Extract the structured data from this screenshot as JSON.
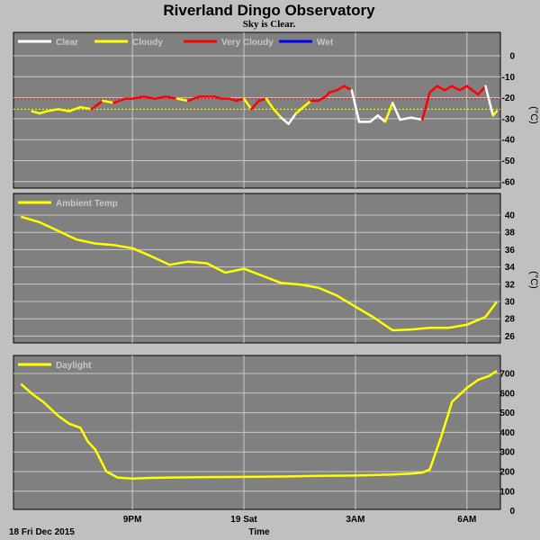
{
  "header": {
    "title": "Riverland Dingo Observatory",
    "subtitle": "Sky is Clear."
  },
  "footer": {
    "date_label": "18 Fri Dec 2015",
    "xlabel": "Time"
  },
  "colors": {
    "background": "#c0c0c0",
    "panel": "#808080",
    "grid": "#c8c8c8",
    "clear": "#ffffff",
    "cloudy": "#ffff00",
    "very_cloudy": "#ff0000",
    "wet": "#0000ff"
  },
  "chart_data": [
    {
      "type": "line",
      "ylabel": "(°C)",
      "ylim": [
        -60,
        0
      ],
      "yticks": [
        "0",
        "-10",
        "-20",
        "-30",
        "-40",
        "-50",
        "-60"
      ],
      "grid": true,
      "legend_position": "top-left",
      "legend": [
        {
          "name": "Clear",
          "color": "#ffffff"
        },
        {
          "name": "Cloudy",
          "color": "#ffff00"
        },
        {
          "name": "Very Cloudy",
          "color": "#ff0000"
        },
        {
          "name": "Wet",
          "color": "#0000ff"
        }
      ],
      "thresholds": [
        {
          "value": -20,
          "color": "#ff0000"
        },
        {
          "value": -25,
          "color": "#ffff00"
        }
      ],
      "x_hours": [
        18.3,
        18.5,
        18.7,
        19.0,
        19.3,
        19.6,
        19.9,
        20.2,
        20.5,
        20.8,
        21.0,
        21.3,
        21.6,
        21.9,
        22.2,
        22.5,
        22.8,
        23.0,
        23.2,
        23.4,
        23.6,
        23.8,
        24.0,
        24.2,
        24.4,
        24.6,
        24.8,
        25.0,
        25.2,
        25.4,
        25.6,
        25.8,
        26.0,
        26.2,
        26.3,
        26.5,
        26.7,
        26.9,
        27.1,
        27.2,
        27.4,
        27.6,
        27.8,
        28.0,
        28.2,
        28.5,
        28.8,
        29.0,
        29.2,
        29.4,
        29.6,
        29.8,
        30.0,
        30.3,
        30.5,
        30.7,
        30.8
      ],
      "values": [
        -26,
        -27,
        -26,
        -25,
        -26,
        -24,
        -25,
        -21,
        -22,
        -20,
        -20,
        -19,
        -20,
        -19,
        -20,
        -21,
        -19,
        -19,
        -19,
        -20,
        -20,
        -21,
        -20,
        -25,
        -21,
        -20,
        -25,
        -29,
        -32,
        -27,
        -24,
        -21,
        -21,
        -19,
        -17,
        -16,
        -14,
        -16,
        -31,
        -31,
        -31,
        -28,
        -31,
        -22,
        -30,
        -29,
        -30,
        -17,
        -14,
        -16,
        -14,
        -16,
        -14,
        -18,
        -14,
        -28,
        -26
      ],
      "states": [
        "cloudy",
        "cloudy",
        "cloudy",
        "cloudy",
        "cloudy",
        "cloudy",
        "cloudy",
        "very_cloudy",
        "cloudy",
        "very_cloudy",
        "very_cloudy",
        "very_cloudy",
        "very_cloudy",
        "very_cloudy",
        "very_cloudy",
        "cloudy",
        "very_cloudy",
        "very_cloudy",
        "very_cloudy",
        "very_cloudy",
        "very_cloudy",
        "very_cloudy",
        "very_cloudy",
        "cloudy",
        "very_cloudy",
        "very_cloudy",
        "cloudy",
        "cloudy",
        "clear",
        "clear",
        "cloudy",
        "cloudy",
        "very_cloudy",
        "very_cloudy",
        "very_cloudy",
        "very_cloudy",
        "very_cloudy",
        "very_cloudy",
        "clear",
        "clear",
        "clear",
        "clear",
        "clear",
        "cloudy",
        "clear",
        "clear",
        "clear",
        "very_cloudy",
        "very_cloudy",
        "very_cloudy",
        "very_cloudy",
        "very_cloudy",
        "very_cloudy",
        "very_cloudy",
        "very_cloudy",
        "clear",
        "cloudy"
      ]
    },
    {
      "type": "line",
      "ylabel": "(°C)",
      "ylim": [
        24,
        41
      ],
      "yticks": [
        "40",
        "38",
        "36",
        "34",
        "32",
        "30",
        "28",
        "26"
      ],
      "grid": true,
      "legend_position": "top-left",
      "series": [
        {
          "name": "Ambient Temp",
          "color": "#ffff00",
          "x_hours": [
            18.0,
            18.5,
            19.0,
            19.5,
            20.0,
            20.5,
            21.0,
            21.5,
            22.0,
            22.5,
            23.0,
            23.5,
            24.0,
            24.5,
            25.0,
            25.5,
            26.0,
            26.5,
            27.0,
            27.5,
            28.0,
            28.5,
            29.0,
            29.5,
            30.0,
            30.5,
            30.8
          ],
          "values": [
            40.0,
            39.3,
            38.2,
            37.1,
            36.6,
            36.4,
            36.0,
            35.0,
            33.9,
            34.3,
            34.1,
            32.9,
            33.4,
            32.5,
            31.6,
            31.4,
            31.0,
            30.0,
            28.6,
            27.2,
            25.6,
            25.7,
            25.9,
            25.9,
            26.3,
            27.3,
            29.2
          ]
        }
      ]
    },
    {
      "type": "line",
      "ylim": [
        0,
        750
      ],
      "yticks": [
        "700",
        "600",
        "500",
        "400",
        "300",
        "200",
        "100",
        "0"
      ],
      "grid": true,
      "legend_position": "top-left",
      "x_ticks": [
        {
          "label": "9PM",
          "hour": 21
        },
        {
          "label": "19 Sat",
          "hour": 24
        },
        {
          "label": "3AM",
          "hour": 27
        },
        {
          "label": "6AM",
          "hour": 30
        }
      ],
      "series": [
        {
          "name": "Daylight",
          "color": "#ffff00",
          "x_hours": [
            18.0,
            18.3,
            18.6,
            19.0,
            19.3,
            19.6,
            19.8,
            20.0,
            20.3,
            20.6,
            21.0,
            21.5,
            22.0,
            23.0,
            24.0,
            25.0,
            26.0,
            27.0,
            28.0,
            28.5,
            28.8,
            29.0,
            29.3,
            29.6,
            30.0,
            30.3,
            30.6,
            30.8
          ],
          "values": [
            630,
            580,
            540,
            470,
            430,
            410,
            340,
            300,
            190,
            160,
            155,
            158,
            160,
            162,
            163,
            165,
            168,
            170,
            175,
            180,
            185,
            200,
            360,
            540,
            610,
            650,
            670,
            695
          ]
        }
      ]
    }
  ]
}
